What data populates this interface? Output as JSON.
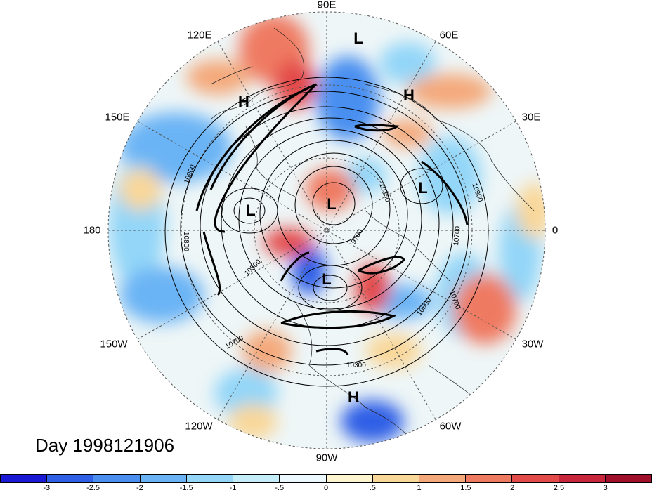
{
  "title": "Day 1998121906",
  "longitude_labels": {
    "top": "90E",
    "upper_left": "120E",
    "upper_right": "60E",
    "left_upper": "150E",
    "right_upper": "30E",
    "left": "180",
    "right": "0",
    "left_lower": "150W",
    "right_lower": "30W",
    "lower_left": "120W",
    "lower_right": "60W",
    "bottom": "90W"
  },
  "pressure_centers": [
    "L",
    "H",
    "H",
    "L",
    "L",
    "L",
    "L",
    "H"
  ],
  "contour_labels": [
    "10900",
    "10800",
    "10300",
    "10900",
    "10700",
    "10500",
    "9700",
    "10700",
    "10800",
    "10700",
    "10300"
  ],
  "colorbar": {
    "ticks": [
      "-3",
      "-2.5",
      "-2",
      "-1.5",
      "-1",
      "-.5",
      "0",
      ".5",
      "1",
      "1.5",
      "2",
      "2.5",
      "3"
    ],
    "colors": [
      "#1a1ad6",
      "#2f5fe6",
      "#4a8ff0",
      "#6ab4f5",
      "#93d6f8",
      "#c4edfa",
      "#ecfaff",
      "#fdf5cf",
      "#f9d798",
      "#f4a97a",
      "#ef7a62",
      "#e34a4a",
      "#c8263a",
      "#a0102a"
    ]
  }
}
